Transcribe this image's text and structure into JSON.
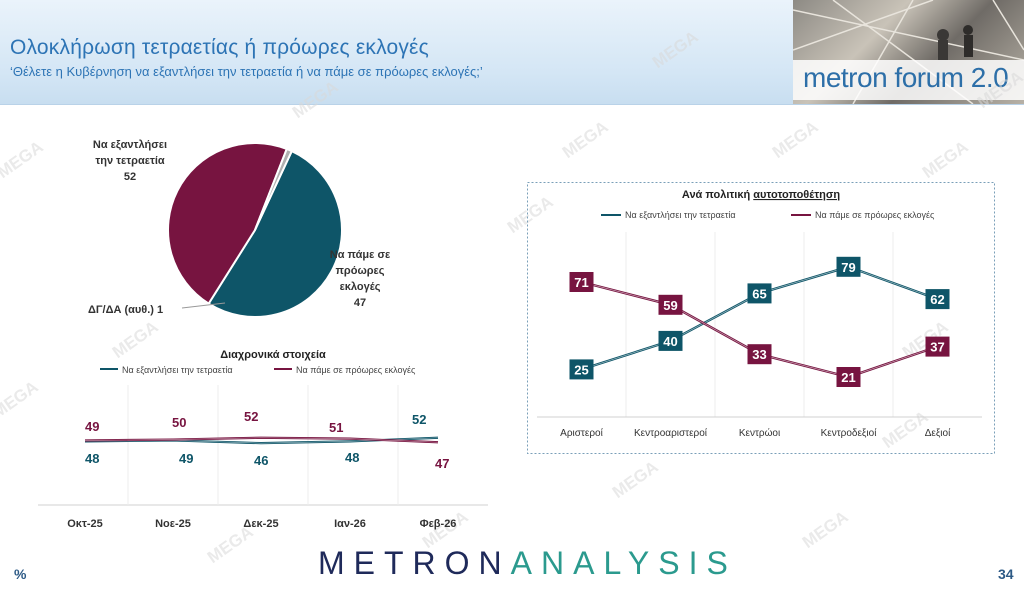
{
  "header": {
    "title": "Ολοκλήρωση τετραετίας ή πρόωρες εκλογές",
    "subtitle": "‘Θέλετε η Κυβέρνηση να εξαντλήσει την τετραετία ή να πάμε σε πρόωρες εκλογές;’",
    "logo": "metron forum 2.0"
  },
  "footer": {
    "logo_left": "METRON",
    "logo_right": "ANALYSIS",
    "page_number": "34",
    "unit": "%"
  },
  "watermark": "MEGA",
  "colors": {
    "teal": "#0e5568",
    "maroon": "#771440",
    "grey": "#b0b0b0"
  },
  "chart_data": [
    {
      "type": "pie",
      "labels": [
        [
          "Να εξαντλήσει",
          "την τετραετία",
          "52"
        ],
        [
          "Να πάμε σε",
          "πρόωρες",
          "εκλογές",
          "47"
        ],
        [
          "ΔΓ/ΔΑ (αυθ.) 1"
        ]
      ],
      "slices": [
        {
          "name": "Να εξαντλήσει την τετραετία",
          "value": 52,
          "color": "#0e5568"
        },
        {
          "name": "Να πάμε σε πρόωρες εκλογές",
          "value": 47,
          "color": "#771440"
        },
        {
          "name": "ΔΓ/ΔΑ (αυθ.)",
          "value": 1,
          "color": "#b0b0b0"
        }
      ]
    },
    {
      "type": "line",
      "title": "Διαχρονικά στοιχεία",
      "categories": [
        "Οκτ-25",
        "Νοε-25",
        "Δεκ-25",
        "Ιαν-26",
        "Φεβ-26"
      ],
      "series": [
        {
          "name": "Να εξαντλήσει την τετραετία",
          "values": [
            48,
            49,
            46,
            48,
            52
          ],
          "color": "#0e5568"
        },
        {
          "name": "Να πάμε σε πρόωρες εκλογές",
          "values": [
            49,
            50,
            52,
            51,
            47
          ],
          "color": "#771440"
        }
      ]
    },
    {
      "type": "line",
      "title_plain": "Ανά πολιτική ",
      "title_underlined": "αυτοτοποθέτηση",
      "categories": [
        "Αριστεροί",
        "Κεντροαριστεροί",
        "Κεντρώοι",
        "Κεντροδεξιοί",
        "Δεξιοί"
      ],
      "series": [
        {
          "name": "Να εξαντλήσει την τετραετία",
          "values": [
            25,
            40,
            65,
            79,
            62
          ],
          "color": "#0e5568"
        },
        {
          "name": "Να πάμε σε πρόωρες εκλογές",
          "values": [
            71,
            59,
            33,
            21,
            37
          ],
          "color": "#771440"
        }
      ]
    }
  ]
}
